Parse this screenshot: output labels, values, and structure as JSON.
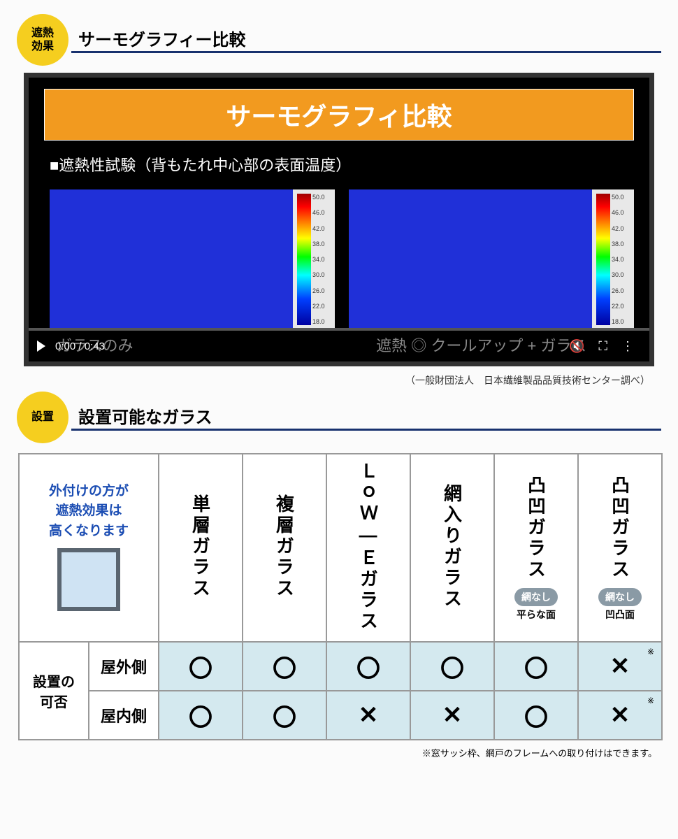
{
  "colors": {
    "badge_bg": "#f5ce1f",
    "underline": "#18316e",
    "video_title_bg": "#f29a1f",
    "thermal_blue": "#2030d8",
    "cell_bg": "#d4e9ef",
    "corner_text": "#1b4db3",
    "pill_bg": "#8a9aa5",
    "border": "#999999"
  },
  "section1": {
    "badge": "遮熱\n効果",
    "title": "サーモグラフィー比較"
  },
  "video": {
    "title": "サーモグラフィ比較",
    "subtitle": "■遮熱性試験（背もたれ中心部の表面温度）",
    "time": "0:00 / 0:43",
    "caption_left": "ガラスのみ",
    "caption_right": "遮熱 ◎ クールアップ + ガラス",
    "colorbar_ticks": [
      "50.0",
      "46.0",
      "42.0",
      "38.0",
      "34.0",
      "30.0",
      "26.0",
      "22.0",
      "18.0"
    ],
    "colorbar_unit": "℃"
  },
  "credit1": "（一般財団法人　日本繊維製品品質技術センター調べ）",
  "section2": {
    "badge": "設置",
    "title": "設置可能なガラス"
  },
  "table": {
    "corner": "外付けの方が\n遮熱効果は\n高くなります",
    "columns": [
      {
        "label": "単層ガラス"
      },
      {
        "label": "複層ガラス"
      },
      {
        "label": "ＬｏＷ—Ｅガラス"
      },
      {
        "label": "網入りガラス"
      },
      {
        "label": "凸凹ガラス",
        "pill": "網なし",
        "pill2": "平らな面"
      },
      {
        "label": "凸凹ガラス",
        "pill": "網なし",
        "pill2": "凹凸面"
      }
    ],
    "side_label": "設置の\n可否",
    "rows": [
      {
        "label": "屋外側",
        "cells": [
          "〇",
          "〇",
          "〇",
          "〇",
          "〇",
          "✕※"
        ]
      },
      {
        "label": "屋内側",
        "cells": [
          "〇",
          "〇",
          "✕",
          "✕",
          "〇",
          "✕※"
        ]
      }
    ],
    "note": "※窓サッシ枠、網戸のフレームへの取り付けはできます。"
  }
}
